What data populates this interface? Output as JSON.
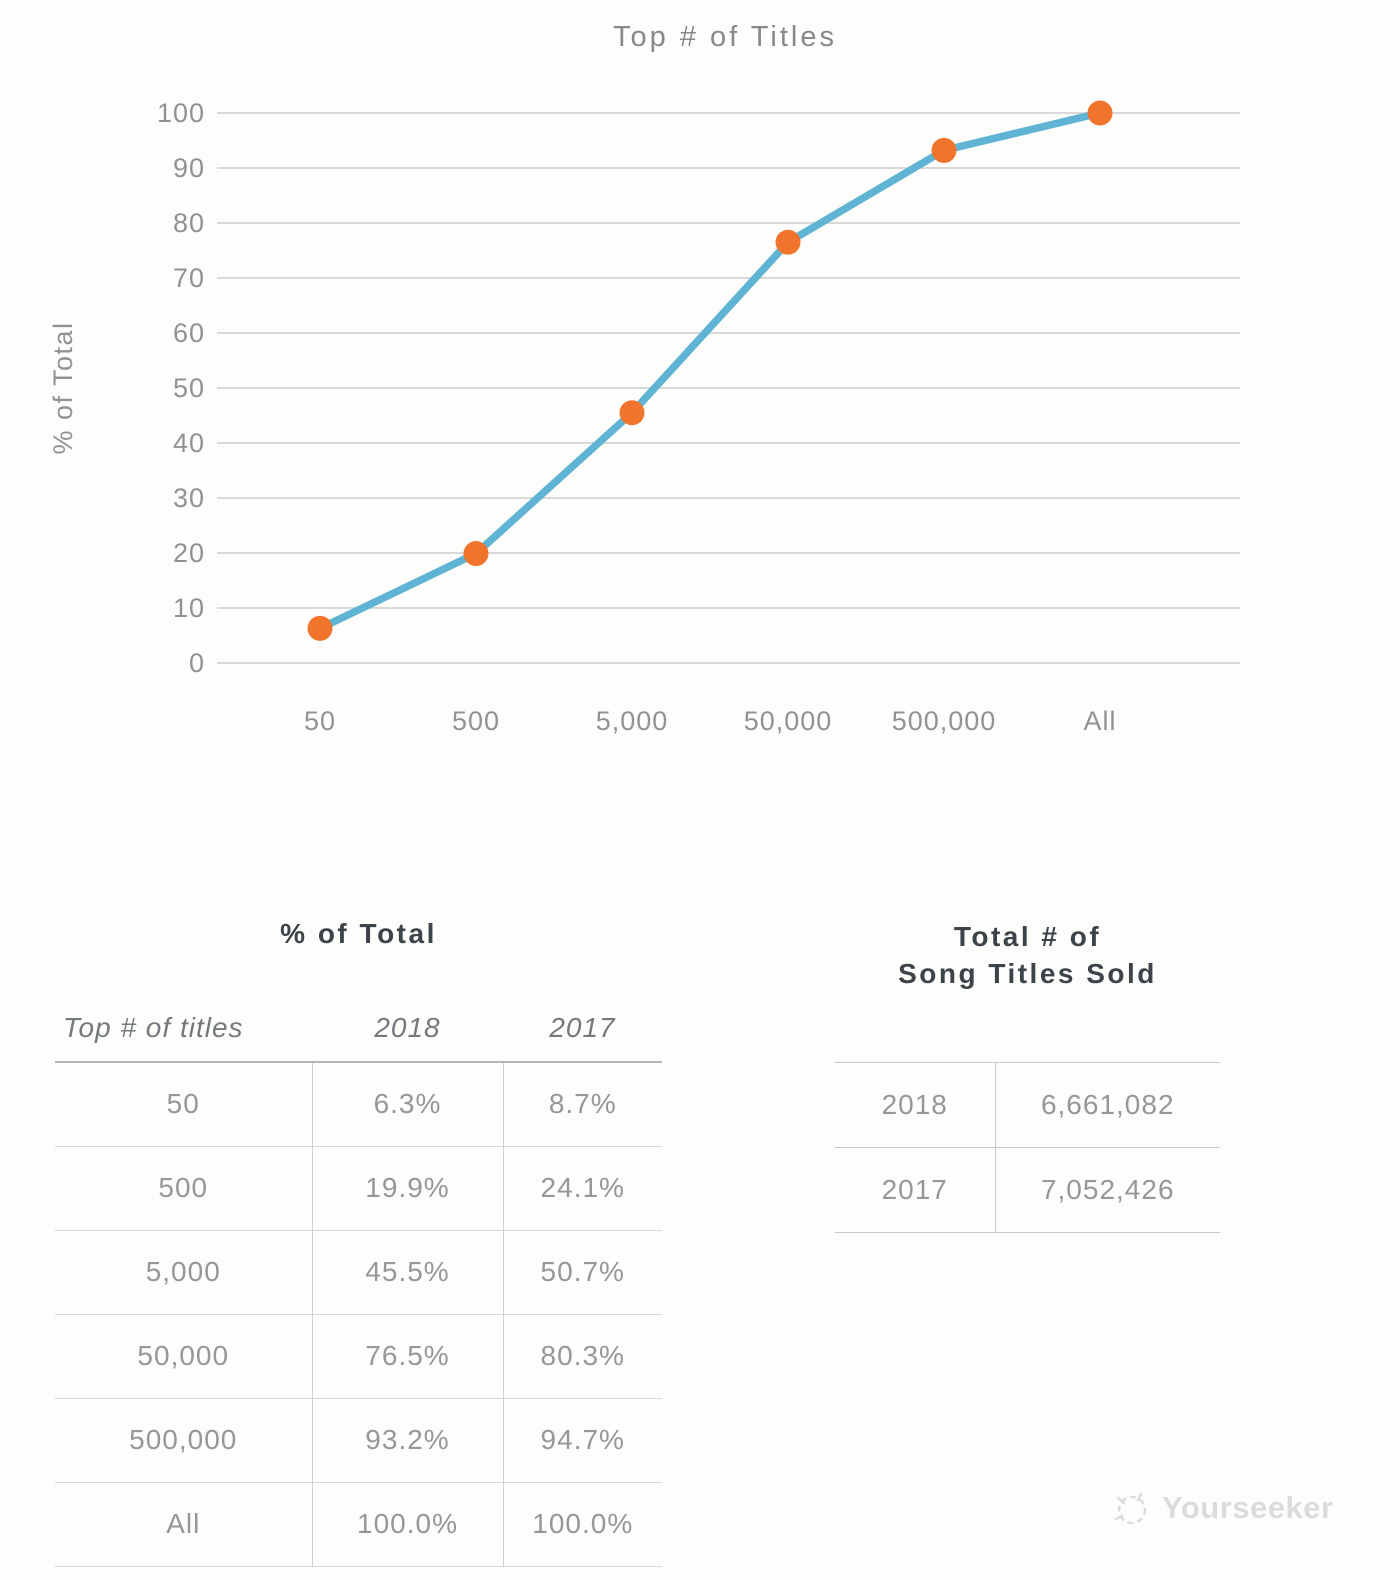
{
  "chart_data": {
    "type": "line",
    "title": "Top # of Titles",
    "xlabel": "",
    "ylabel": "% of Total",
    "categories": [
      "50",
      "500",
      "5,000",
      "50,000",
      "500,000",
      "All"
    ],
    "series": [
      {
        "name": "2018",
        "values": [
          6.3,
          19.9,
          45.5,
          76.5,
          93.2,
          100.0
        ]
      }
    ],
    "ylim": [
      0,
      100
    ],
    "y_tick_step": 10,
    "grid": "horizontal",
    "legend": false
  },
  "chart_style": {
    "line_color": "#5fb4d4",
    "point_color": "#f0742c",
    "grid_color": "#d9d9d9"
  },
  "left_table": {
    "title": "% of Total",
    "headers": [
      "Top # of titles",
      "2018",
      "2017"
    ],
    "rows": [
      [
        "50",
        "6.3%",
        "8.7%"
      ],
      [
        "500",
        "19.9%",
        "24.1%"
      ],
      [
        "5,000",
        "45.5%",
        "50.7%"
      ],
      [
        "50,000",
        "76.5%",
        "80.3%"
      ],
      [
        "500,000",
        "93.2%",
        "94.7%"
      ],
      [
        "All",
        "100.0%",
        "100.0%"
      ]
    ]
  },
  "right_table": {
    "title_line1": "Total # of",
    "title_line2": "Song Titles Sold",
    "rows": [
      [
        "2018",
        "6,661,082"
      ],
      [
        "2017",
        "7,052,426"
      ]
    ]
  },
  "watermark": {
    "text": "Yourseeker"
  }
}
